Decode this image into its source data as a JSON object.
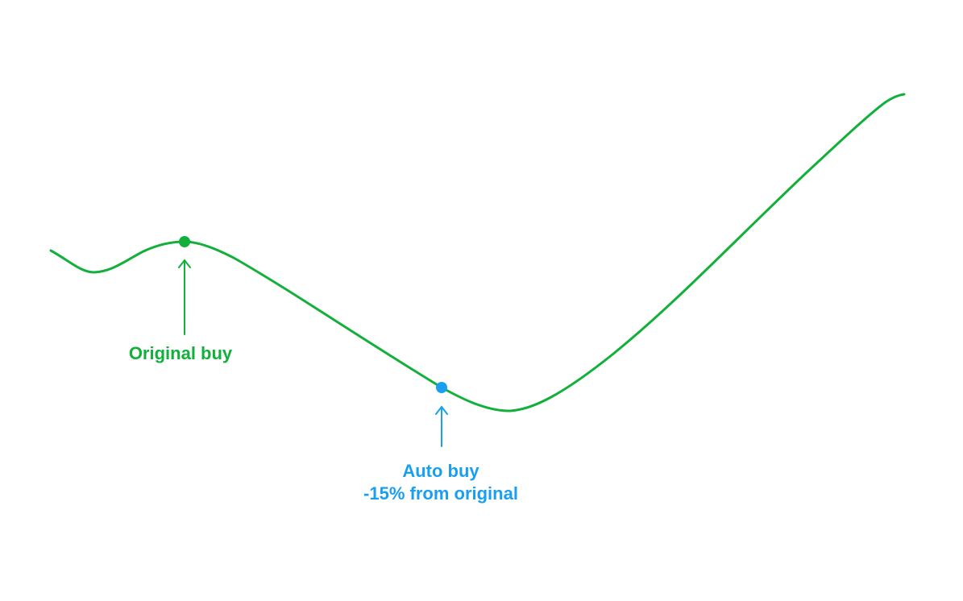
{
  "colors": {
    "line": "#12b03a",
    "original": "#12b03a",
    "auto": "#1a9ef0",
    "background": "#ffffff"
  },
  "annotations": {
    "original_buy": {
      "label": "Original buy"
    },
    "auto_buy": {
      "label_line1": "Auto buy",
      "label_line2": "-15% from original"
    }
  },
  "icons": {
    "original_arrow": "arrow-up-icon",
    "auto_arrow": "arrow-up-icon"
  }
}
